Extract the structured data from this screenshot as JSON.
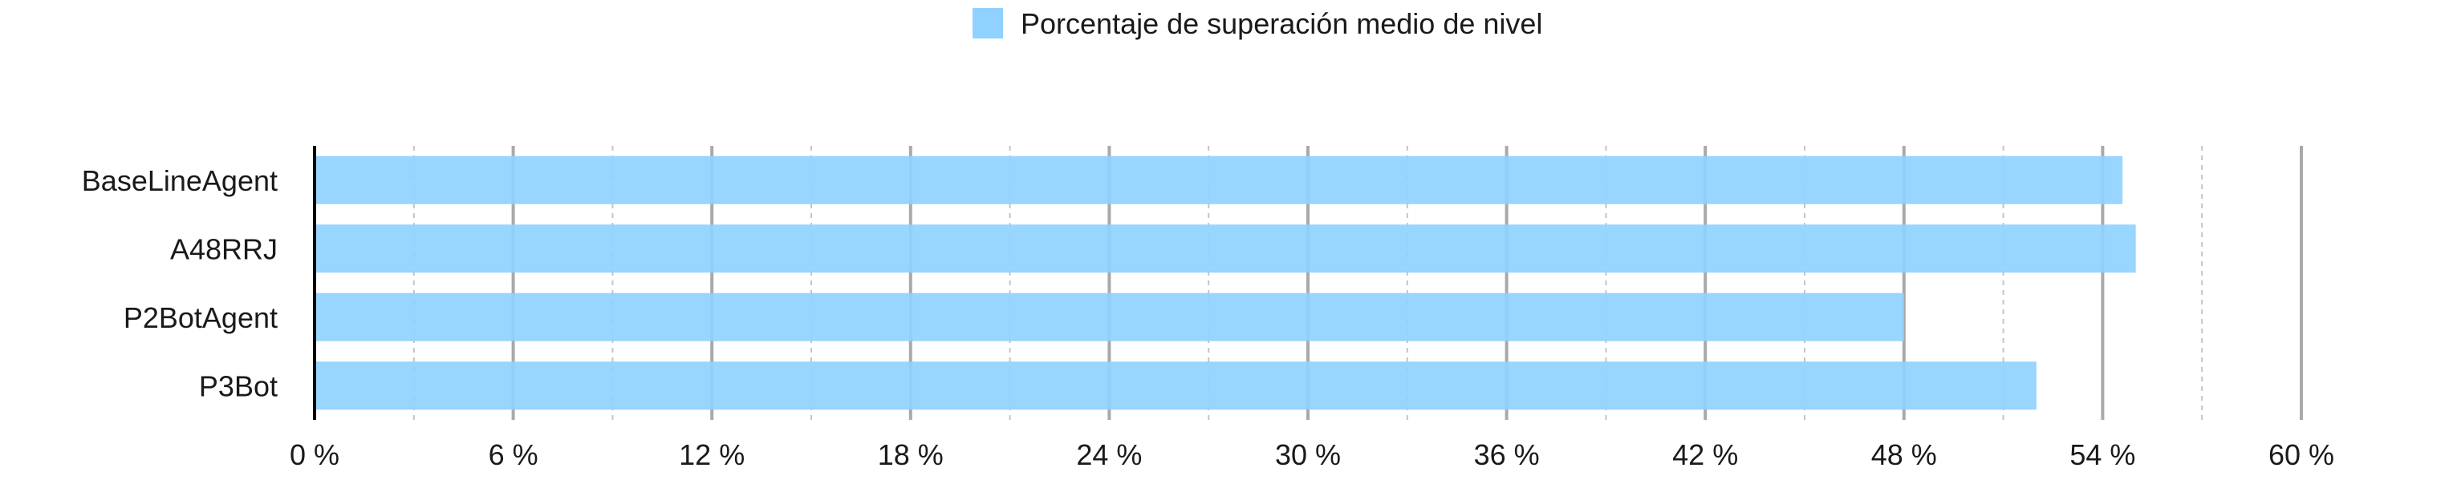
{
  "chart_data": {
    "type": "bar",
    "orientation": "horizontal",
    "categories": [
      "BaseLineAgent",
      "A48RRJ",
      "P2BotAgent",
      "P3Bot"
    ],
    "series": [
      {
        "name": "Porcentaje de superación medio de nivel",
        "values": [
          54.6,
          55.0,
          48.0,
          52.0
        ]
      }
    ],
    "xlim": [
      0,
      60
    ],
    "x_ticks": [
      0,
      6,
      12,
      18,
      24,
      30,
      36,
      42,
      48,
      54,
      60
    ],
    "tick_labels": [
      "0 %",
      "6 %",
      "12 %",
      "18 %",
      "24 %",
      "30 %",
      "36 %",
      "42 %",
      "48 %",
      "54 %",
      "60 %"
    ],
    "minor_grid": "dashed",
    "legend_position": "top-center",
    "bar_color": "#8fd1ff"
  }
}
